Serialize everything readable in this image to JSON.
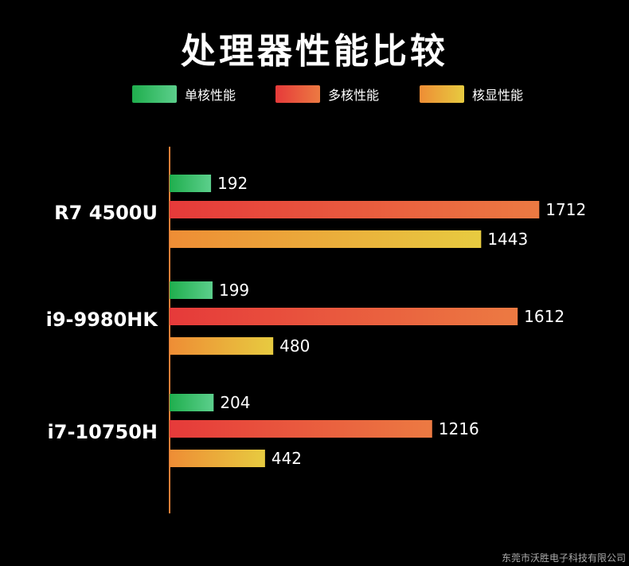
{
  "chart_data": {
    "type": "bar",
    "orientation": "horizontal",
    "title": "处理器性能比较",
    "categories": [
      "R7  4500U",
      "i9-9980HK",
      "i7-10750H"
    ],
    "series": [
      {
        "name": "单核性能",
        "values": [
          192,
          199,
          204
        ],
        "color_start": "#1fae4d",
        "color_end": "#5ccf8c"
      },
      {
        "name": "多核性能",
        "values": [
          1712,
          1612,
          1216
        ],
        "color_start": "#e63a3a",
        "color_end": "#ec7a42"
      },
      {
        "name": "核显性能",
        "values": [
          1443,
          480,
          442
        ],
        "color_start": "#ee8d35",
        "color_end": "#e7cb40"
      }
    ],
    "xlabel": "",
    "ylabel": "",
    "grid": false,
    "legend_position": "top"
  },
  "footer": "东莞市沃胜电子科技有限公司",
  "colors": {
    "background": "#000000",
    "axis_line": "#e27f38",
    "text": "#ffffff"
  }
}
